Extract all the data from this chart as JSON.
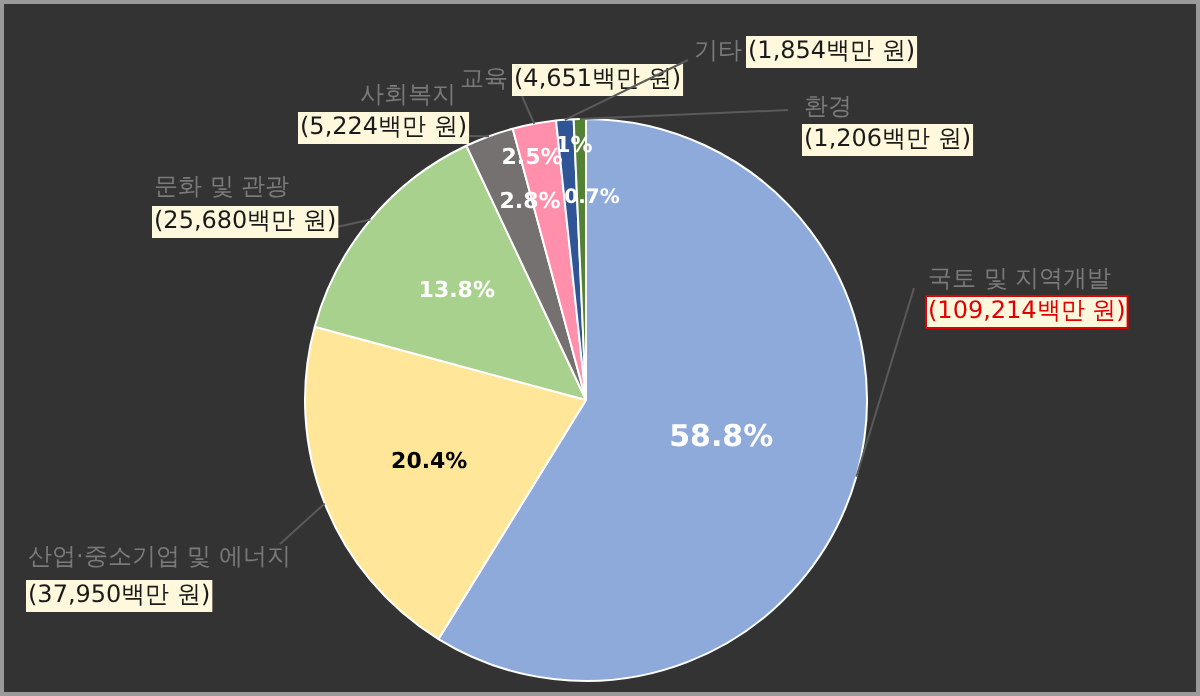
{
  "chart_data": {
    "type": "pie",
    "categories": [
      "국토 및 지역개발",
      "산업·중소기업 및 에너지",
      "문화 및 관광",
      "사회복지",
      "교육",
      "기타",
      "환경"
    ],
    "values": [
      58.8,
      20.4,
      13.8,
      2.8,
      2.5,
      1,
      0.7
    ],
    "colors": [
      "#8eaadb",
      "#ffe699",
      "#a9d18e",
      "#767171",
      "#ff8fab",
      "#2f5597",
      "#548235"
    ],
    "value_labels": [
      "58.8%",
      "20.4%",
      "13.8%",
      "2.8%",
      "2.5%",
      "1%",
      "0.7%"
    ],
    "annotations": [
      "(109,214백만 원)",
      "(37,950백만 원)",
      "(25,680백만 원)",
      "(5,224백만 원)",
      "(4,651백만 원)",
      "(1,854백만 원)",
      "(1,206백만 원)"
    ],
    "legend": false
  }
}
